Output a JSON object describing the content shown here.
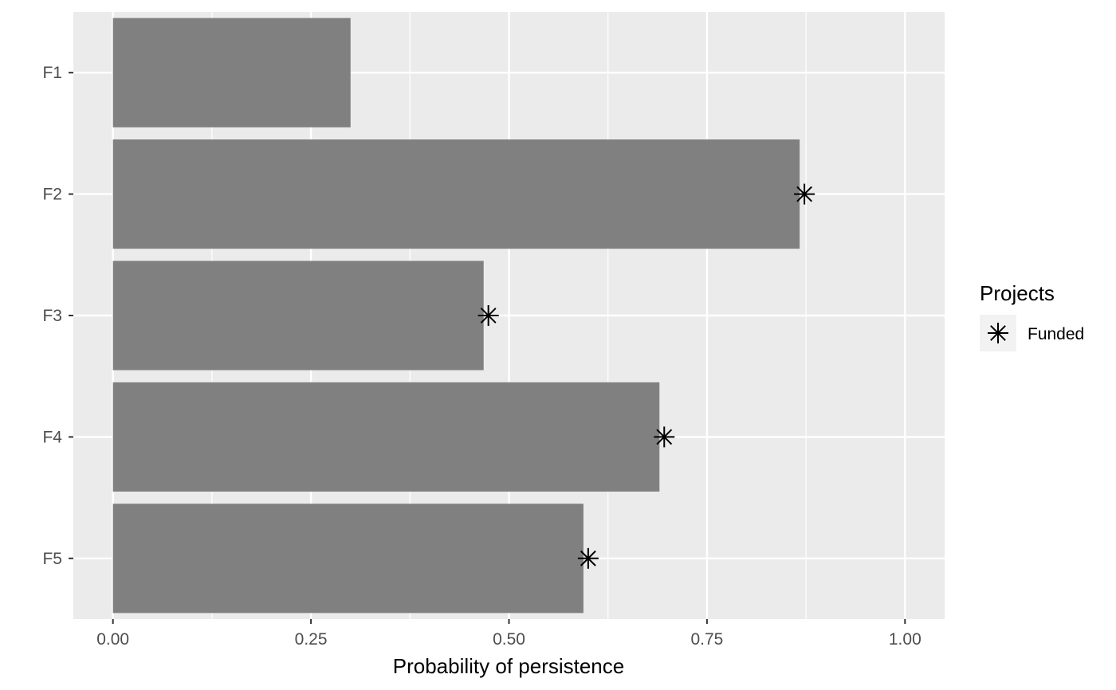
{
  "chart_data": {
    "type": "bar",
    "orientation": "horizontal",
    "categories": [
      "F1",
      "F2",
      "F3",
      "F4",
      "F5"
    ],
    "values": [
      0.3,
      0.867,
      0.468,
      0.69,
      0.594
    ],
    "markers": {
      "name": "Funded",
      "symbol": "asterisk",
      "values": [
        null,
        0.873,
        0.474,
        0.696,
        0.6
      ]
    },
    "xlabel": "Probability of persistence",
    "ylabel": "",
    "xlim": [
      -0.05,
      1.05
    ],
    "xticks": [
      0.0,
      0.25,
      0.5,
      0.75,
      1.0
    ],
    "xtick_labels": [
      "0.00",
      "0.25",
      "0.50",
      "0.75",
      "1.00"
    ],
    "grid": true,
    "legend": {
      "title": "Projects",
      "position": "right",
      "entries": [
        "Funded"
      ]
    },
    "colors": {
      "panel": "#ebebeb",
      "grid": "#ffffff",
      "bar": "#808080",
      "marker": "#000000"
    }
  }
}
